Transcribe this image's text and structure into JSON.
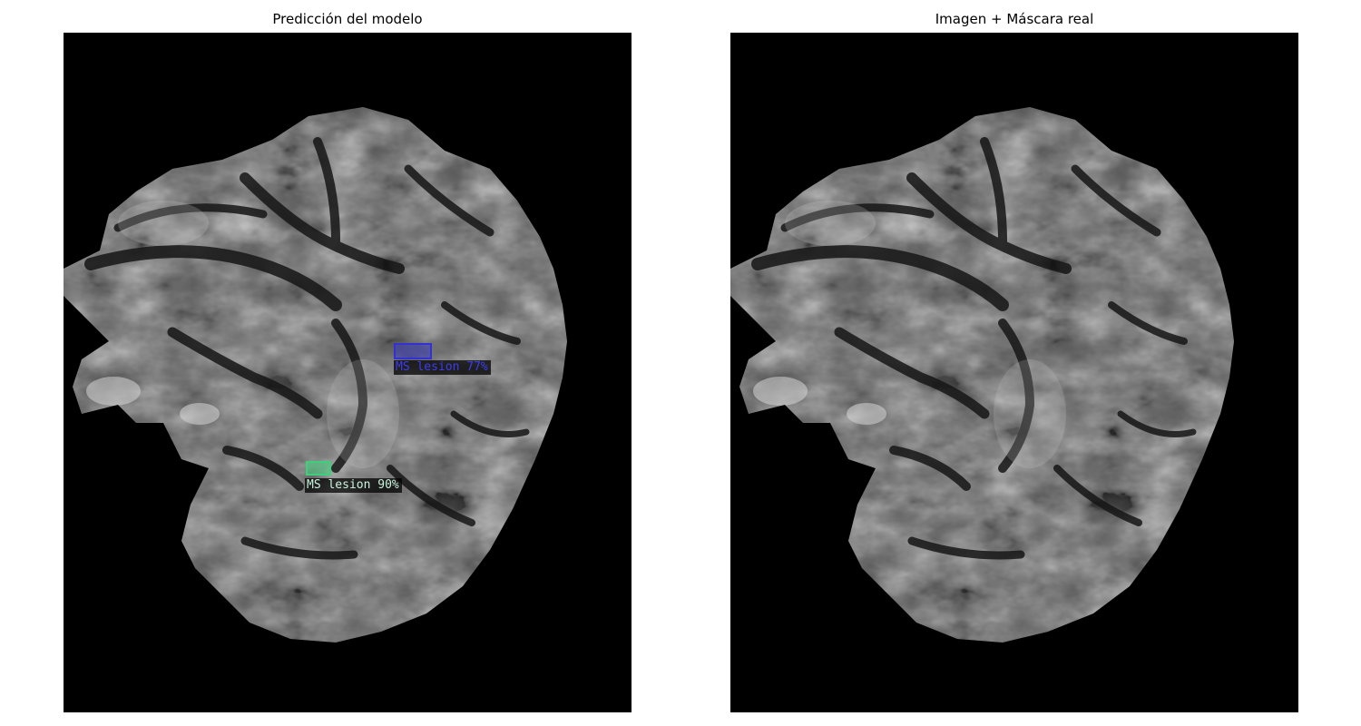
{
  "panels": {
    "left": {
      "title": "Predicción del modelo",
      "detections": [
        {
          "label": "MS lesion 77%",
          "color": "#3232d2"
        },
        {
          "label": "MS lesion 90%",
          "color": "#3ecf7a",
          "text_color": "#c8f5dc"
        }
      ]
    },
    "right": {
      "title": "Imagen + Máscara real"
    }
  },
  "colors": {
    "background": "#000000",
    "tissue_light": "#8a8a8a",
    "tissue_dark": "#2a2a2a"
  }
}
